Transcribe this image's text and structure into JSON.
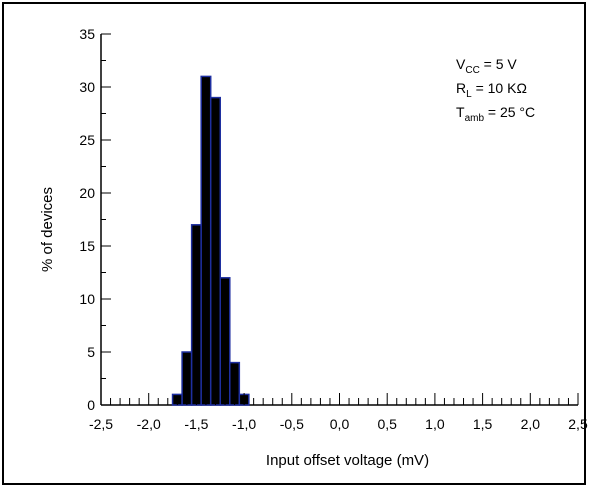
{
  "chart_data": {
    "type": "bar",
    "title": "",
    "xlabel": "Input  offset  voltage (mV)",
    "ylabel": "% of devices",
    "xlim": [
      -2.5,
      2.5
    ],
    "ylim": [
      0,
      35
    ],
    "x_ticks": [
      "-2,5",
      "-2,0",
      "-1,5",
      "-1,0",
      "-0,5",
      "0,0",
      "0,5",
      "1,0",
      "1,5",
      "2,0",
      "2,5"
    ],
    "x_tick_values": [
      -2.5,
      -2.0,
      -1.5,
      -1.0,
      -0.5,
      0.0,
      0.5,
      1.0,
      1.5,
      2.0,
      2.5
    ],
    "y_ticks": [
      "0",
      "5",
      "10",
      "15",
      "20",
      "25",
      "30",
      "35"
    ],
    "y_tick_values": [
      0,
      5,
      10,
      15,
      20,
      25,
      30,
      35
    ],
    "minor_x_step": 0.1,
    "bin_width": 0.1,
    "bins": [
      {
        "x": -1.7,
        "value": 1
      },
      {
        "x": -1.6,
        "value": 5
      },
      {
        "x": -1.5,
        "value": 17
      },
      {
        "x": -1.4,
        "value": 31
      },
      {
        "x": -1.3,
        "value": 29
      },
      {
        "x": -1.2,
        "value": 12
      },
      {
        "x": -1.1,
        "value": 4
      },
      {
        "x": -1.0,
        "value": 1
      }
    ],
    "bar_fill": "#000000",
    "bar_stroke": "#1e2fa0",
    "grid": false,
    "annotations": [
      {
        "main": "V",
        "sub": "CC",
        "rest": " = 5 V"
      },
      {
        "main": "R",
        "sub": "L",
        "rest": " = 10 KΩ"
      },
      {
        "main": "T",
        "sub": "amb",
        "rest": " = 25 °C"
      }
    ]
  }
}
